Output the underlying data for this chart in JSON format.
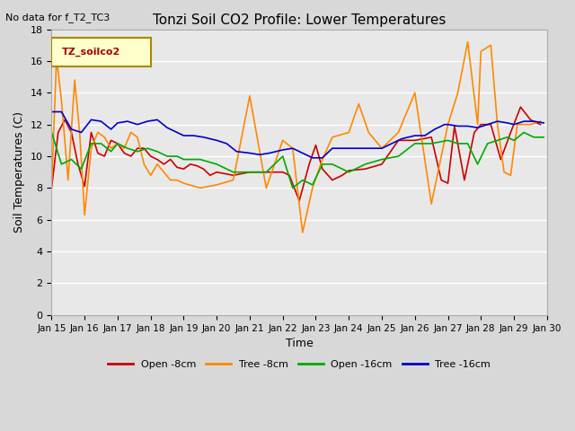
{
  "title": "Tonzi Soil CO2 Profile: Lower Temperatures",
  "subtitle": "No data for f_T2_TC3",
  "xlabel": "Time",
  "ylabel": "Soil Temperatures (C)",
  "ylim": [
    0,
    18
  ],
  "yticks": [
    0,
    2,
    4,
    6,
    8,
    10,
    12,
    14,
    16,
    18
  ],
  "legend_label": "TZ_soilco2",
  "bg_color": "#e8e8e8",
  "plot_bg": "#f0f0f0",
  "series": {
    "open_8cm": {
      "label": "Open -8cm",
      "color": "#cc0000",
      "x": [
        15,
        15.2,
        15.4,
        15.6,
        15.8,
        16.0,
        16.2,
        16.4,
        16.6,
        16.8,
        17.0,
        17.2,
        17.4,
        17.6,
        17.8,
        18.0,
        18.2,
        18.4,
        18.6,
        18.8,
        19.0,
        19.2,
        19.4,
        19.6,
        19.8,
        20.0,
        20.5,
        21.0,
        21.5,
        22.0,
        22.2,
        22.5,
        22.8,
        23.0,
        23.2,
        23.5,
        23.8,
        24.0,
        24.5,
        25.0,
        25.5,
        26.0,
        26.5,
        26.8,
        27.0,
        27.2,
        27.5,
        27.8,
        28.0,
        28.3,
        28.6,
        28.9,
        29.2,
        29.5,
        29.8
      ],
      "y": [
        8.0,
        11.5,
        12.3,
        11.5,
        9.5,
        8.1,
        11.5,
        10.2,
        10.0,
        11.0,
        10.8,
        10.2,
        10.0,
        10.5,
        10.5,
        10.0,
        9.8,
        9.5,
        9.8,
        9.3,
        9.2,
        9.5,
        9.4,
        9.2,
        8.8,
        9.0,
        8.8,
        9.0,
        9.0,
        9.0,
        8.8,
        7.2,
        9.5,
        10.7,
        9.2,
        8.5,
        8.8,
        9.1,
        9.2,
        9.5,
        11.0,
        11.0,
        11.2,
        8.5,
        8.3,
        11.9,
        8.5,
        11.5,
        12.0,
        12.0,
        9.8,
        11.5,
        13.1,
        12.3,
        12.0
      ]
    },
    "tree_8cm": {
      "label": "Tree -8cm",
      "color": "#ff8800",
      "x": [
        15,
        15.15,
        15.3,
        15.5,
        15.7,
        15.85,
        16.0,
        16.2,
        16.4,
        16.6,
        16.8,
        17.0,
        17.2,
        17.4,
        17.6,
        17.8,
        18.0,
        18.2,
        18.4,
        18.6,
        18.8,
        19.0,
        19.5,
        20.0,
        20.5,
        21.0,
        21.5,
        22.0,
        22.3,
        22.6,
        22.9,
        23.2,
        23.5,
        24.0,
        24.3,
        24.6,
        25.0,
        25.5,
        26.0,
        26.5,
        27.0,
        27.3,
        27.6,
        27.9,
        28.0,
        28.3,
        28.5,
        28.7,
        28.9,
        29.1,
        29.5,
        29.8
      ],
      "y": [
        8.0,
        16.2,
        13.5,
        8.5,
        14.8,
        11.5,
        6.3,
        10.5,
        11.5,
        11.2,
        10.5,
        10.8,
        10.5,
        11.5,
        11.2,
        9.5,
        8.8,
        9.5,
        9.0,
        8.5,
        8.5,
        8.3,
        8.0,
        8.2,
        8.5,
        13.8,
        8.0,
        11.0,
        10.5,
        5.2,
        8.0,
        9.8,
        11.2,
        11.5,
        13.3,
        11.5,
        10.5,
        11.5,
        14.0,
        7.0,
        12.0,
        14.0,
        17.2,
        12.0,
        16.6,
        17.0,
        12.0,
        9.0,
        8.8,
        12.0,
        12.0,
        12.2
      ]
    },
    "open_16cm": {
      "label": "Open -16cm",
      "color": "#00aa00",
      "x": [
        15,
        15.3,
        15.6,
        15.9,
        16.2,
        16.5,
        16.8,
        17.0,
        17.3,
        17.6,
        17.9,
        18.2,
        18.5,
        18.8,
        19.0,
        19.5,
        20.0,
        20.5,
        21.0,
        21.5,
        22.0,
        22.3,
        22.6,
        22.9,
        23.2,
        23.5,
        24.0,
        24.5,
        25.0,
        25.5,
        26.0,
        26.5,
        27.0,
        27.3,
        27.6,
        27.9,
        28.2,
        28.5,
        28.8,
        29.0,
        29.3,
        29.6,
        29.9
      ],
      "y": [
        11.5,
        9.5,
        9.8,
        9.2,
        10.8,
        10.8,
        10.3,
        10.8,
        10.5,
        10.3,
        10.5,
        10.3,
        10.0,
        10.0,
        9.8,
        9.8,
        9.5,
        9.0,
        9.0,
        9.0,
        10.0,
        8.0,
        8.5,
        8.2,
        9.5,
        9.5,
        9.0,
        9.5,
        9.8,
        10.0,
        10.8,
        10.8,
        11.0,
        10.8,
        10.8,
        9.5,
        10.8,
        11.0,
        11.2,
        11.0,
        11.5,
        11.2,
        11.2
      ]
    },
    "tree_16cm": {
      "label": "Tree -16cm",
      "color": "#0000cc",
      "x": [
        15,
        15.3,
        15.6,
        15.9,
        16.2,
        16.5,
        16.8,
        17.0,
        17.3,
        17.6,
        17.9,
        18.2,
        18.5,
        18.8,
        19.0,
        19.3,
        19.6,
        20.0,
        20.3,
        20.6,
        21.0,
        21.3,
        21.6,
        22.0,
        22.3,
        22.6,
        22.9,
        23.2,
        23.5,
        24.0,
        24.3,
        24.6,
        25.0,
        25.3,
        25.6,
        26.0,
        26.3,
        26.6,
        26.9,
        27.0,
        27.3,
        27.6,
        27.9,
        28.2,
        28.5,
        28.8,
        29.0,
        29.3,
        29.6,
        29.9
      ],
      "y": [
        12.8,
        12.8,
        11.7,
        11.5,
        12.3,
        12.2,
        11.7,
        12.1,
        12.2,
        12.0,
        12.2,
        12.3,
        11.8,
        11.5,
        11.3,
        11.3,
        11.2,
        11.0,
        10.8,
        10.3,
        10.2,
        10.1,
        10.2,
        10.4,
        10.5,
        10.2,
        9.9,
        9.9,
        10.5,
        10.5,
        10.5,
        10.5,
        10.5,
        10.8,
        11.1,
        11.3,
        11.3,
        11.7,
        12.0,
        12.0,
        11.9,
        11.9,
        11.8,
        12.0,
        12.2,
        12.1,
        12.0,
        12.2,
        12.2,
        12.1
      ]
    }
  },
  "xtick_positions": [
    15,
    16,
    17,
    18,
    19,
    20,
    21,
    22,
    23,
    24,
    25,
    26,
    27,
    28,
    29,
    30
  ],
  "xtick_labels": [
    "Jan 15",
    "Jan 16",
    "Jan 17",
    "Jan 18",
    "Jan 19",
    "Jan 20",
    "Jan 21",
    "Jan 22",
    "Jan 23",
    "Jan 24",
    "Jan 25",
    "Jan 26",
    "Jan 27",
    "Jan 28",
    "Jan 29",
    "Jan 30"
  ]
}
